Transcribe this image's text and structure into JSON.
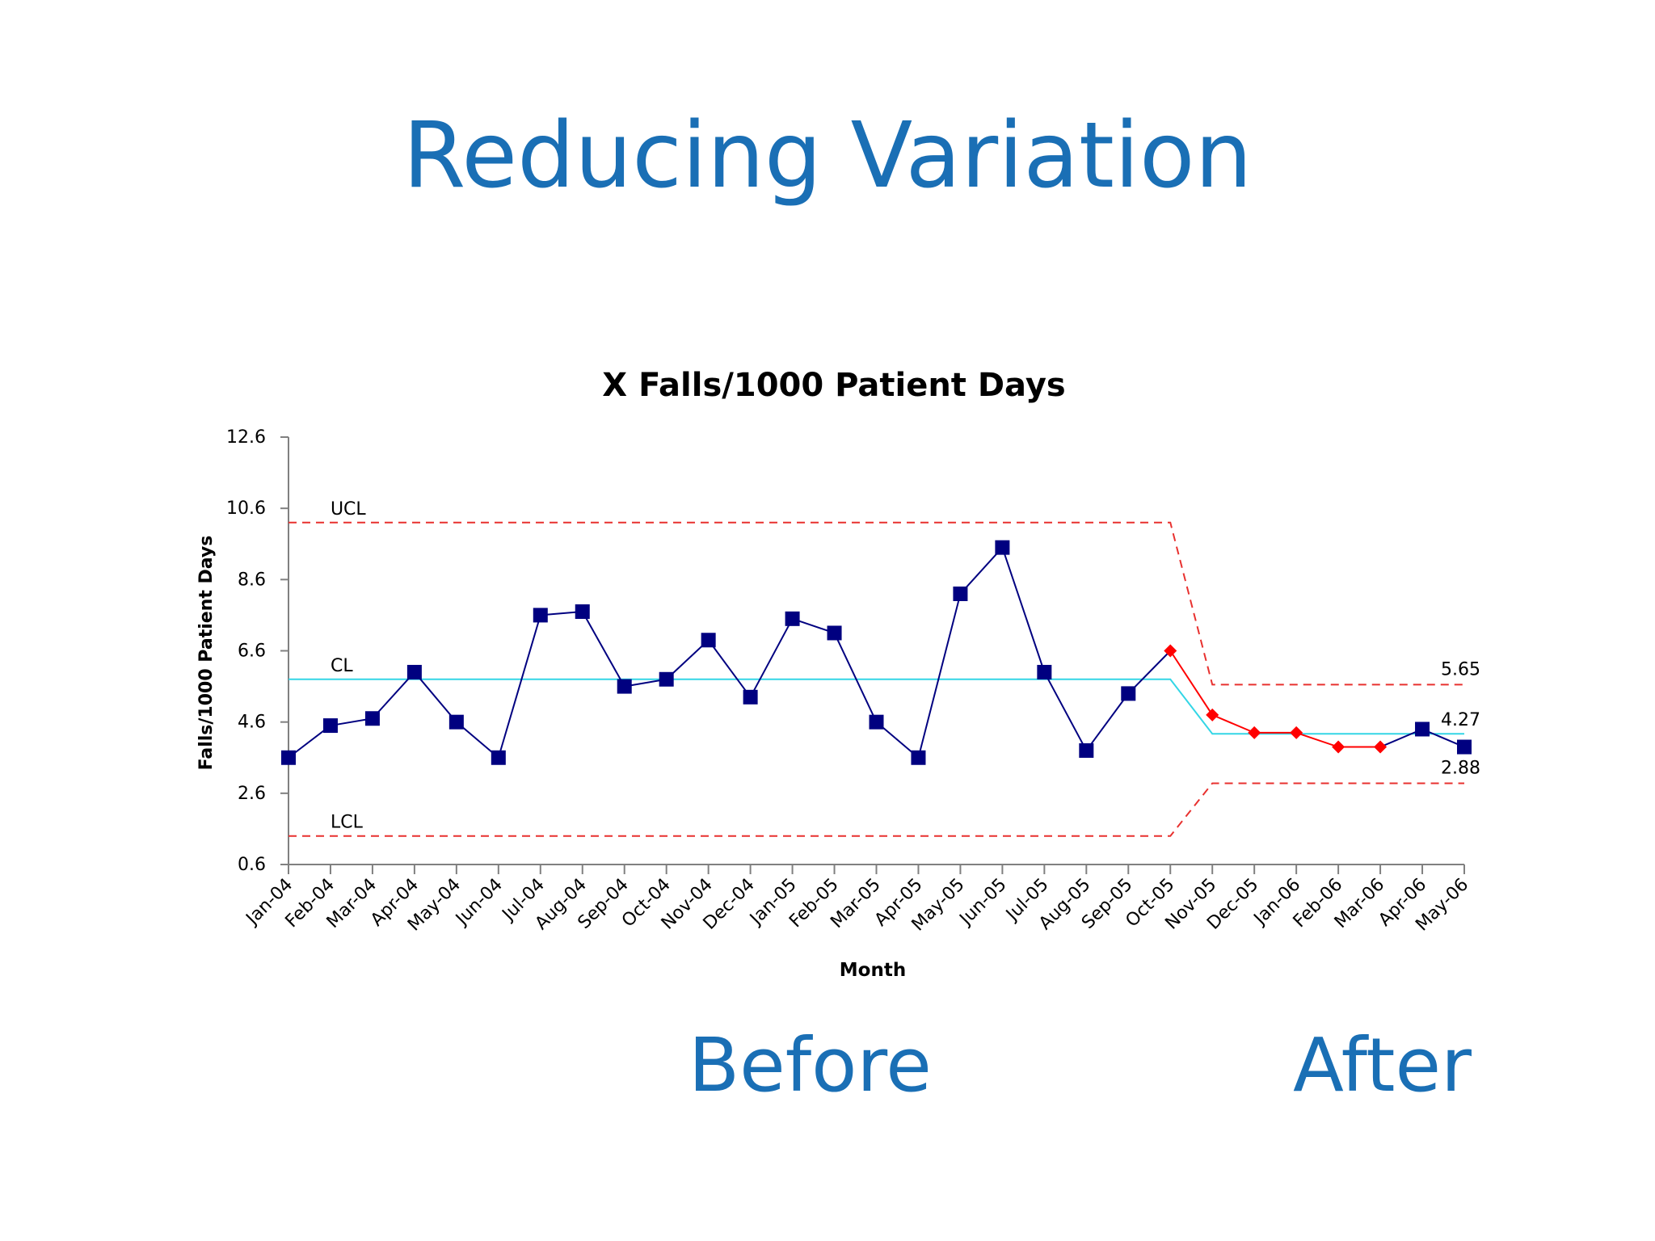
{
  "slide": {
    "title": "Reducing Variation",
    "before_label": "Before",
    "after_label": "After"
  },
  "chart_data": {
    "type": "line",
    "title": "X Falls/1000 Patient Days",
    "xlabel": "Month",
    "ylabel": "Falls/1000  Patient Days",
    "ylim": [
      0.6,
      12.6
    ],
    "yticks": [
      "12.6",
      "10.6",
      "8.6",
      "6.6",
      "4.6",
      "2.6",
      "0.6"
    ],
    "ytick_values": [
      12.6,
      10.6,
      8.6,
      6.6,
      4.6,
      2.6,
      0.6
    ],
    "categories": [
      "Jan-04",
      "Feb-04",
      "Mar-04",
      "Apr-04",
      "May-04",
      "Jun-04",
      "Jul-04",
      "Aug-04",
      "Sep-04",
      "Oct-04",
      "Nov-04",
      "Dec-04",
      "Jan-05",
      "Feb-05",
      "Mar-05",
      "Apr-05",
      "May-05",
      "Jun-05",
      "Jul-05",
      "Aug-05",
      "Sep-05",
      "Oct-05",
      "Nov-05",
      "Dec-05",
      "Jan-06",
      "Feb-06",
      "Mar-06",
      "Apr-06",
      "May-06"
    ],
    "series": [
      {
        "values": [
          3.6,
          4.5,
          4.7,
          6.0,
          4.6,
          3.6,
          7.6,
          7.7,
          5.6,
          5.8,
          6.9,
          5.3,
          7.5,
          7.1,
          4.6,
          3.6,
          8.2,
          9.5,
          6.0,
          3.8,
          5.4,
          6.6,
          4.8,
          4.3,
          4.3,
          3.9,
          3.9,
          4.4,
          3.9
        ],
        "marker_by_point": [
          "square",
          "square",
          "square",
          "square",
          "square",
          "square",
          "square",
          "square",
          "square",
          "square",
          "square",
          "square",
          "square",
          "square",
          "square",
          "square",
          "square",
          "square",
          "square",
          "square",
          "square",
          "diamond",
          "diamond",
          "diamond",
          "diamond",
          "diamond",
          "diamond",
          "square",
          "square"
        ],
        "color_by_point": [
          "#000080",
          "#000080",
          "#000080",
          "#000080",
          "#000080",
          "#000080",
          "#000080",
          "#000080",
          "#000080",
          "#000080",
          "#000080",
          "#000080",
          "#000080",
          "#000080",
          "#000080",
          "#000080",
          "#000080",
          "#000080",
          "#000080",
          "#000080",
          "#000080",
          "#ff0000",
          "#ff0000",
          "#ff0000",
          "#ff0000",
          "#ff0000",
          "#ff0000",
          "#000080",
          "#000080"
        ]
      }
    ],
    "control_limits": {
      "ucl": [
        10.2,
        10.2,
        10.2,
        10.2,
        10.2,
        10.2,
        10.2,
        10.2,
        10.2,
        10.2,
        10.2,
        10.2,
        10.2,
        10.2,
        10.2,
        10.2,
        10.2,
        10.2,
        10.2,
        10.2,
        10.2,
        10.2,
        5.65,
        5.65,
        5.65,
        5.65,
        5.65,
        5.65,
        5.65
      ],
      "cl": [
        5.8,
        5.8,
        5.8,
        5.8,
        5.8,
        5.8,
        5.8,
        5.8,
        5.8,
        5.8,
        5.8,
        5.8,
        5.8,
        5.8,
        5.8,
        5.8,
        5.8,
        5.8,
        5.8,
        5.8,
        5.8,
        5.8,
        4.27,
        4.27,
        4.27,
        4.27,
        4.27,
        4.27,
        4.27
      ],
      "lcl": [
        1.4,
        1.4,
        1.4,
        1.4,
        1.4,
        1.4,
        1.4,
        1.4,
        1.4,
        1.4,
        1.4,
        1.4,
        1.4,
        1.4,
        1.4,
        1.4,
        1.4,
        1.4,
        1.4,
        1.4,
        1.4,
        1.4,
        2.88,
        2.88,
        2.88,
        2.88,
        2.88,
        2.88,
        2.88
      ],
      "ucl_label": "UCL",
      "cl_label": "CL",
      "lcl_label": "LCL",
      "after_ucl_label": "5.65",
      "after_cl_label": "4.27",
      "after_lcl_label": "2.88"
    },
    "colors": {
      "line": "#000080",
      "after_line": "#ff0000",
      "limits": "#e8312f",
      "center": "#33d6e6"
    },
    "grid": false
  }
}
